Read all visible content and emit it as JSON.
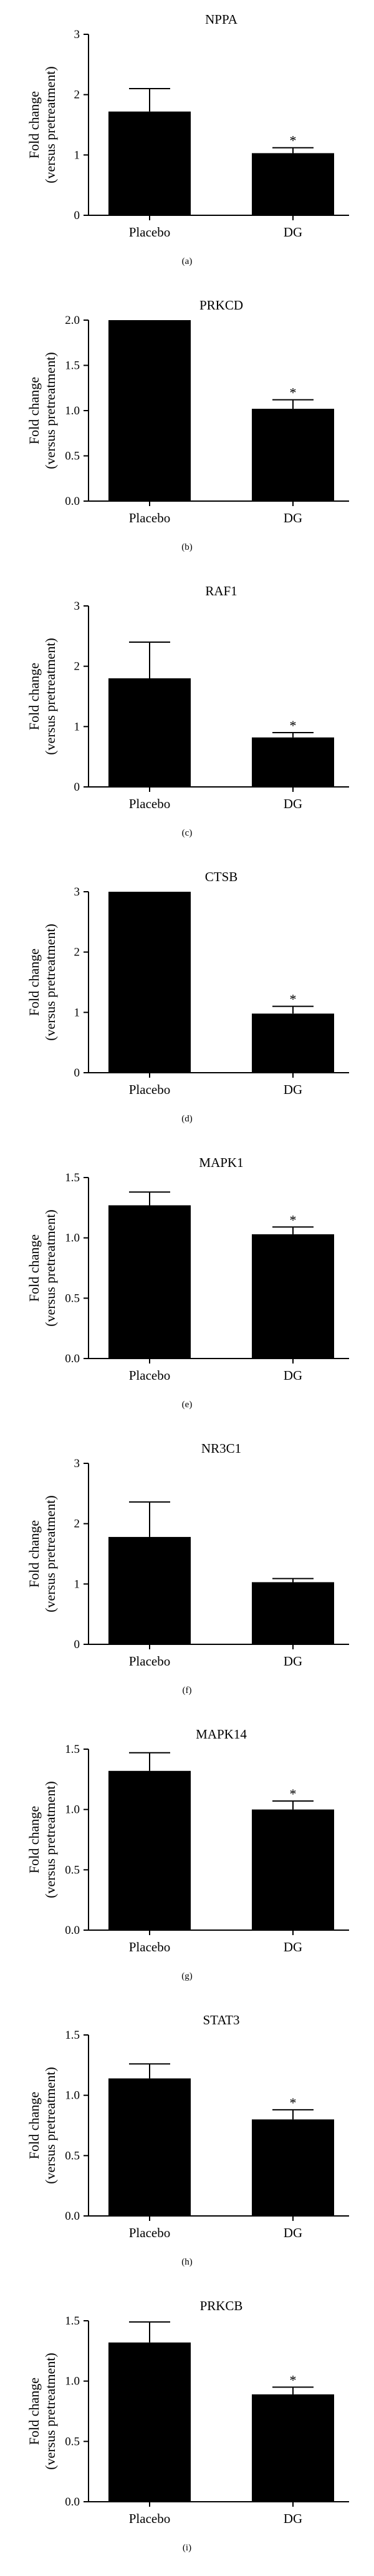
{
  "chart_data": [
    {
      "type": "bar",
      "title": "NPPA",
      "caption": "(a)",
      "ylabel_line1": "Fold change",
      "ylabel_line2": "(versus pretreatment)",
      "categories": [
        "Placebo",
        "DG"
      ],
      "values": [
        1.72,
        1.03
      ],
      "errors": [
        0.38,
        0.09
      ],
      "significant": [
        false,
        true
      ],
      "ylim": [
        0,
        3
      ],
      "yticks": [
        "0",
        "1",
        "2",
        "3"
      ]
    },
    {
      "type": "bar",
      "title": "PRKCD",
      "caption": "(b)",
      "ylabel_line1": "Fold change",
      "ylabel_line2": "(versus pretreatment)",
      "categories": [
        "Placebo",
        "DG"
      ],
      "values": [
        2.0,
        1.02
      ],
      "errors": [
        0.0,
        0.1
      ],
      "significant": [
        false,
        true
      ],
      "ylim": [
        0,
        2
      ],
      "yticks": [
        "0.0",
        "0.5",
        "1.0",
        "1.5",
        "2.0"
      ]
    },
    {
      "type": "bar",
      "title": "RAF1",
      "caption": "(c)",
      "ylabel_line1": "Fold change",
      "ylabel_line2": "(versus pretreatment)",
      "categories": [
        "Placebo",
        "DG"
      ],
      "values": [
        1.8,
        0.82
      ],
      "errors": [
        0.6,
        0.08
      ],
      "significant": [
        false,
        true
      ],
      "ylim": [
        0,
        3
      ],
      "yticks": [
        "0",
        "1",
        "2",
        "3"
      ]
    },
    {
      "type": "bar",
      "title": "CTSB",
      "caption": "(d)",
      "ylabel_line1": "Fold change",
      "ylabel_line2": "(versus pretreatment)",
      "categories": [
        "Placebo",
        "DG"
      ],
      "values": [
        3.0,
        0.98
      ],
      "errors": [
        0.0,
        0.12
      ],
      "significant": [
        false,
        true
      ],
      "ylim": [
        0,
        3
      ],
      "yticks": [
        "0",
        "1",
        "2",
        "3"
      ]
    },
    {
      "type": "bar",
      "title": "MAPK1",
      "caption": "(e)",
      "ylabel_line1": "Fold change",
      "ylabel_line2": "(versus pretreatment)",
      "categories": [
        "Placebo",
        "DG"
      ],
      "values": [
        1.27,
        1.03
      ],
      "errors": [
        0.11,
        0.06
      ],
      "significant": [
        false,
        true
      ],
      "ylim": [
        0,
        1.5
      ],
      "yticks": [
        "0.0",
        "0.5",
        "1.0",
        "1.5"
      ]
    },
    {
      "type": "bar",
      "title": "NR3C1",
      "caption": "(f)",
      "ylabel_line1": "Fold change",
      "ylabel_line2": "(versus pretreatment)",
      "categories": [
        "Placebo",
        "DG"
      ],
      "values": [
        1.78,
        1.03
      ],
      "errors": [
        0.58,
        0.06
      ],
      "significant": [
        false,
        false
      ],
      "ylim": [
        0,
        3
      ],
      "yticks": [
        "0",
        "1",
        "2",
        "3"
      ]
    },
    {
      "type": "bar",
      "title": "MAPK14",
      "caption": "(g)",
      "ylabel_line1": "Fold change",
      "ylabel_line2": "(versus pretreatment)",
      "categories": [
        "Placebo",
        "DG"
      ],
      "values": [
        1.32,
        1.0
      ],
      "errors": [
        0.15,
        0.07
      ],
      "significant": [
        false,
        true
      ],
      "ylim": [
        0,
        1.5
      ],
      "yticks": [
        "0.0",
        "0.5",
        "1.0",
        "1.5"
      ]
    },
    {
      "type": "bar",
      "title": "STAT3",
      "caption": "(h)",
      "ylabel_line1": "Fold change",
      "ylabel_line2": "(versus pretreatment)",
      "categories": [
        "Placebo",
        "DG"
      ],
      "values": [
        1.14,
        0.8
      ],
      "errors": [
        0.12,
        0.08
      ],
      "significant": [
        false,
        true
      ],
      "ylim": [
        0,
        1.5
      ],
      "yticks": [
        "0.0",
        "0.5",
        "1.0",
        "1.5"
      ]
    },
    {
      "type": "bar",
      "title": "PRKCB",
      "caption": "(i)",
      "ylabel_line1": "Fold change",
      "ylabel_line2": "(versus pretreatment)",
      "categories": [
        "Placebo",
        "DG"
      ],
      "values": [
        1.32,
        0.89
      ],
      "errors": [
        0.17,
        0.06
      ],
      "significant": [
        false,
        true
      ],
      "ylim": [
        0,
        1.5
      ],
      "yticks": [
        "0.0",
        "0.5",
        "1.0",
        "1.5"
      ]
    }
  ],
  "significance_marker": "*"
}
